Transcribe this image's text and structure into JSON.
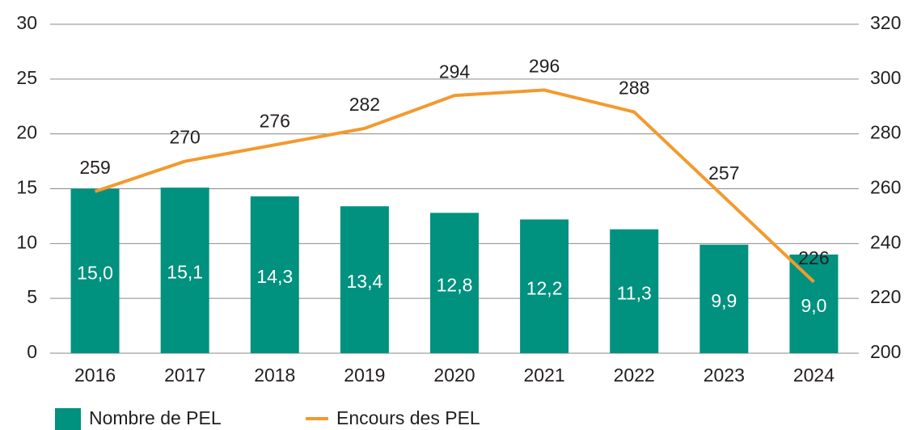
{
  "chart_data": {
    "type": "bar",
    "categories": [
      "2016",
      "2017",
      "2018",
      "2019",
      "2020",
      "2021",
      "2022",
      "2023",
      "2024"
    ],
    "series": [
      {
        "name": "Nombre de PEL",
        "type": "bar",
        "color": "#00917f",
        "values": [
          15.0,
          15.1,
          14.3,
          13.4,
          12.8,
          12.2,
          11.3,
          9.9,
          9.0
        ],
        "value_labels": [
          "15,0",
          "15,1",
          "14,3",
          "13,4",
          "12,8",
          "12,2",
          "11,3",
          "9,9",
          "9,0"
        ]
      },
      {
        "name": "Encours des PEL",
        "type": "line",
        "axis": "y2",
        "color": "#f39a2e",
        "values": [
          259,
          270,
          276,
          282,
          294,
          296,
          288,
          257,
          226
        ]
      }
    ],
    "ylim": [
      0,
      30
    ],
    "yticks": [
      0,
      5,
      10,
      15,
      20,
      25,
      30
    ],
    "y2lim": [
      200,
      320
    ],
    "y2ticks": [
      200,
      220,
      240,
      260,
      280,
      300,
      320
    ],
    "grid": true,
    "legend": "bottom"
  }
}
